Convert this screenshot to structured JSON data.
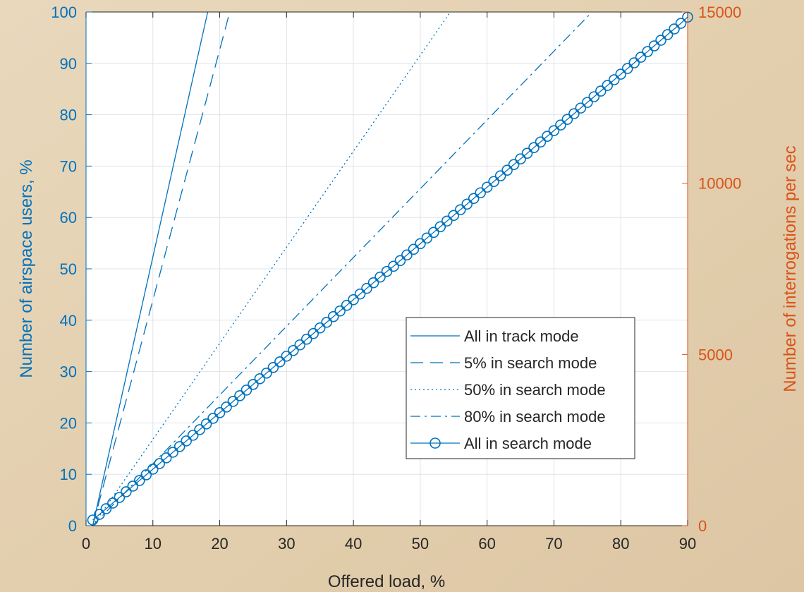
{
  "chart_data": {
    "type": "line",
    "title": "",
    "xlabel": "Offered load, %",
    "ylabel": "Number of airspace users, %",
    "y2label": "Number of interrogations per sec",
    "xlim": [
      0,
      90
    ],
    "ylim": [
      0,
      100
    ],
    "y2lim": [
      0,
      15000
    ],
    "xticks": [
      0,
      10,
      20,
      30,
      40,
      50,
      60,
      70,
      80,
      90
    ],
    "yticks": [
      0,
      10,
      20,
      30,
      40,
      50,
      60,
      70,
      80,
      90,
      100
    ],
    "y2ticks": [
      0,
      5000,
      10000,
      15000
    ],
    "grid": true,
    "legend_position": "lower-right",
    "colors": {
      "primary": "#0072bd",
      "secondary": "#d95319",
      "grid": "#dfe3e8",
      "plot_background": "#ffffff",
      "figure_background": "#e6d3b6"
    },
    "series": [
      {
        "name": "All in track mode",
        "style": "solid",
        "x": [
          1,
          18.2
        ],
        "y": [
          0,
          100
        ]
      },
      {
        "name": "5% in search mode",
        "style": "dashed",
        "x": [
          1,
          21.5
        ],
        "y": [
          0,
          100
        ]
      },
      {
        "name": "50% in search mode",
        "style": "dotted",
        "x": [
          1,
          54.5
        ],
        "y": [
          0,
          100
        ]
      },
      {
        "name": "80% in search mode",
        "style": "dashdot",
        "x": [
          1,
          75.7
        ],
        "y": [
          0,
          100
        ]
      },
      {
        "name": "All in search mode",
        "style": "solid-circle",
        "x": [
          1,
          2,
          3,
          4,
          5,
          6,
          7,
          8,
          9,
          10,
          11,
          12,
          13,
          14,
          15,
          16,
          17,
          18,
          19,
          20,
          21,
          22,
          23,
          24,
          25,
          26,
          27,
          28,
          29,
          30,
          31,
          32,
          33,
          34,
          35,
          36,
          37,
          38,
          39,
          40,
          41,
          42,
          43,
          44,
          45,
          46,
          47,
          48,
          49,
          50,
          51,
          52,
          53,
          54,
          55,
          56,
          57,
          58,
          59,
          60,
          61,
          62,
          63,
          64,
          65,
          66,
          67,
          68,
          69,
          70,
          71,
          72,
          73,
          74,
          75,
          76,
          77,
          78,
          79,
          80,
          81,
          82,
          83,
          84,
          85,
          86,
          87,
          88,
          89,
          90
        ],
        "y": [
          1.1,
          2.2,
          3.3,
          4.4,
          5.5,
          6.6,
          7.7,
          8.8,
          9.9,
          11.0,
          12.1,
          13.2,
          14.3,
          15.4,
          16.5,
          17.6,
          18.7,
          19.8,
          20.9,
          22.0,
          23.1,
          24.2,
          25.3,
          26.4,
          27.5,
          28.6,
          29.7,
          30.8,
          31.9,
          33.0,
          34.1,
          35.2,
          36.3,
          37.4,
          38.5,
          39.6,
          40.7,
          41.8,
          42.9,
          44.0,
          45.1,
          46.2,
          47.3,
          48.4,
          49.5,
          50.5,
          51.6,
          52.7,
          53.8,
          54.9,
          56.0,
          57.1,
          58.2,
          59.3,
          60.4,
          61.5,
          62.6,
          63.7,
          64.8,
          65.9,
          67.0,
          68.1,
          69.2,
          70.3,
          71.4,
          72.5,
          73.6,
          74.7,
          75.8,
          76.9,
          78.0,
          79.1,
          80.2,
          81.3,
          82.4,
          83.5,
          84.6,
          85.7,
          86.8,
          87.9,
          89.0,
          90.1,
          91.2,
          92.3,
          93.4,
          94.5,
          95.6,
          96.7,
          97.8,
          99.0
        ]
      }
    ]
  }
}
